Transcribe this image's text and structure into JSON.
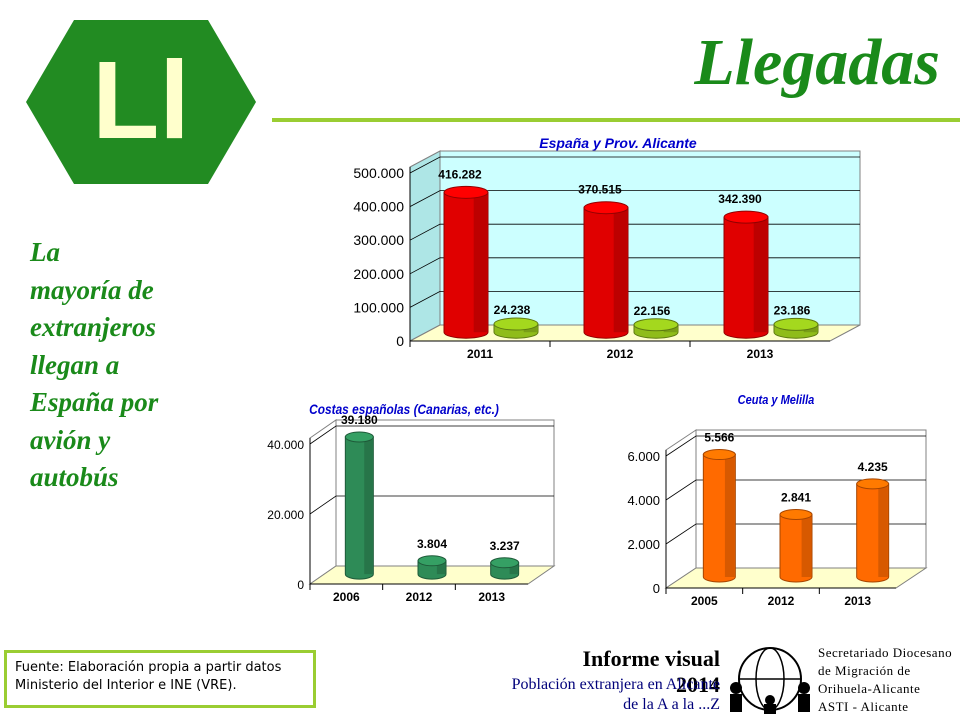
{
  "logo": {
    "letters": "Ll",
    "color": "#228b22"
  },
  "title": "Llegadas",
  "sidebar_text": "La\nmayoría de\nextranjeros\nllegan a\nEspaña por\navión y\nautobús",
  "source_note": "Fuente: Elaboración propia a partir datos\nMinisterio del Interior e INE (VRE).",
  "footer": {
    "title": "Informe visual 2014",
    "line1": "Población extranjera en Alicante",
    "line2": "de la A a la ...Z",
    "org": "Secretariado Diocesano\nde Migración de\nOrihuela-Alicante\nASTI - Alicante"
  },
  "chart_data": [
    {
      "type": "bar",
      "title": "España y Prov. Alicante",
      "categories": [
        "2011",
        "2012",
        "2013"
      ],
      "series": [
        {
          "values": [
            416282,
            370515,
            342390
          ],
          "labels": [
            "416.282",
            "370.515",
            "342.390"
          ],
          "color": "#e00000"
        },
        {
          "values": [
            24238,
            22156,
            23186
          ],
          "labels": [
            "24.238",
            "22.156",
            "23.186"
          ],
          "color": "#8fbc1a"
        }
      ],
      "ylim": [
        0,
        500000
      ],
      "yticks": [
        "0",
        "100.000",
        "200.000",
        "300.000",
        "400.000",
        "500.000"
      ],
      "grid": true,
      "wall_color": "#ccffff",
      "floor_color": "#ffffcc"
    },
    {
      "type": "bar",
      "title": "Costas españolas (Canarias, etc.)",
      "categories": [
        "2006",
        "2012",
        "2013"
      ],
      "series": [
        {
          "values": [
            39180,
            3804,
            3237
          ],
          "labels": [
            "39.180",
            "3.804",
            "3.237"
          ],
          "color": "#2e8b57"
        }
      ],
      "ylim": [
        0,
        40000
      ],
      "yticks": [
        "0",
        "20.000",
        "40.000"
      ],
      "grid": true,
      "wall_color": "#ffffff",
      "floor_color": "#ffffcc"
    },
    {
      "type": "bar",
      "title": "Ceuta y Melilla",
      "categories": [
        "2005",
        "2012",
        "2013"
      ],
      "series": [
        {
          "values": [
            5566,
            2841,
            4235
          ],
          "labels": [
            "5.566",
            "2.841",
            "4.235"
          ],
          "color": "#ff6a00"
        }
      ],
      "ylim": [
        0,
        6000
      ],
      "yticks": [
        "0",
        "2.000",
        "4.000",
        "6.000"
      ],
      "grid": true,
      "wall_color": "#ffffff",
      "floor_color": "#ffffcc"
    }
  ]
}
